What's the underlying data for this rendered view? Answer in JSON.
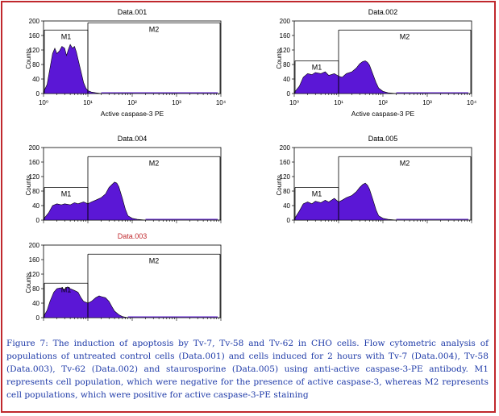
{
  "caption": {
    "title": "Figure 7:",
    "text": "The induction of apoptosis by Tv-7, Tv-58 and Tv-62 in CHO cells. Flow cytometric analysis of populations of untreated control cells (Data.001) and cells induced for 2 hours with Tv-7 (Data.004), Tv-58 (Data.003), Tv-62 (Data.002) and staurosporine (Data.005) using anti-active caspase-3-PE antibody. M1 represents cell population, which were negative for the presence of active caspase-3, whereas M2 represents cell populations, which were positive for active caspase-3-PE staining"
  },
  "colors": {
    "frame": "#c0282d",
    "fill": "#5b17d6",
    "caption": "#1e3aa8",
    "red_title": "#c0282d"
  },
  "chart_data": [
    {
      "type": "area",
      "title": "Data.001",
      "title_color": "#000000",
      "xlabel": "Active caspase-3 PE",
      "ylabel": "Counts",
      "xscale": "log",
      "xlim": [
        1,
        10000
      ],
      "ylim": [
        0,
        200
      ],
      "yticks": [
        0,
        40,
        80,
        120,
        160,
        200
      ],
      "ytick_labels": [
        "0",
        "40",
        "80",
        "120",
        "160",
        "200"
      ],
      "xticks": [
        1,
        10,
        100,
        1000,
        10000
      ],
      "xtick_labels": [
        "10⁰",
        "10¹",
        "10²",
        "10³",
        "10⁴"
      ],
      "gates": [
        {
          "name": "M1",
          "x": [
            1,
            10
          ],
          "level": 175
        },
        {
          "name": "M2",
          "x": [
            10,
            10000
          ],
          "level": 195
        }
      ],
      "x": [
        1,
        1.2,
        1.4,
        1.6,
        1.8,
        2,
        2.3,
        2.6,
        3,
        3.3,
        3.6,
        4,
        4.5,
        5,
        5.5,
        6,
        7,
        8,
        9,
        10,
        12,
        15,
        20
      ],
      "y": [
        4,
        25,
        70,
        110,
        125,
        110,
        118,
        130,
        125,
        105,
        120,
        135,
        125,
        130,
        115,
        95,
        60,
        30,
        15,
        8,
        4,
        2,
        0
      ]
    },
    {
      "type": "area",
      "title": "Data.002",
      "title_color": "#000000",
      "xlabel": "Active caspase-3 PE",
      "ylabel": "Counts",
      "xscale": "log",
      "xlim": [
        1,
        10000
      ],
      "ylim": [
        0,
        200
      ],
      "yticks": [
        0,
        40,
        80,
        120,
        160,
        200
      ],
      "ytick_labels": [
        "0",
        "40",
        "80",
        "120",
        "160",
        "200"
      ],
      "xticks": [
        1,
        10,
        100,
        1000,
        10000
      ],
      "xtick_labels": [
        "10⁰",
        "10¹",
        "10²",
        "10³",
        "10⁴"
      ],
      "gates": [
        {
          "name": "M1",
          "x": [
            1,
            10
          ],
          "level": 90
        },
        {
          "name": "M2",
          "x": [
            10,
            10000
          ],
          "level": 175
        }
      ],
      "x": [
        1,
        1.3,
        1.6,
        2,
        2.5,
        3,
        4,
        5,
        6,
        8,
        10,
        12,
        15,
        20,
        25,
        30,
        35,
        40,
        45,
        50,
        60,
        70,
        80,
        100,
        130,
        200
      ],
      "y": [
        3,
        20,
        45,
        55,
        52,
        58,
        55,
        60,
        50,
        55,
        48,
        45,
        55,
        60,
        70,
        82,
        88,
        90,
        86,
        78,
        52,
        30,
        15,
        6,
        2,
        0
      ]
    },
    {
      "type": "area",
      "title": "Data.004",
      "title_color": "#000000",
      "xlabel": "",
      "ylabel": "Counts",
      "xscale": "log",
      "xlim": [
        1,
        10000
      ],
      "ylim": [
        0,
        200
      ],
      "yticks": [
        0,
        40,
        80,
        120,
        160,
        200
      ],
      "ytick_labels": [
        "0",
        "40",
        "80",
        "120",
        "160",
        "200"
      ],
      "xticks": [],
      "xtick_labels": [],
      "gates": [
        {
          "name": "M1",
          "x": [
            1,
            10
          ],
          "level": 90
        },
        {
          "name": "M2",
          "x": [
            10,
            10000
          ],
          "level": 175
        }
      ],
      "x": [
        1,
        1.3,
        1.6,
        2,
        2.5,
        3,
        4,
        5,
        6,
        8,
        10,
        12,
        15,
        20,
        25,
        30,
        35,
        40,
        45,
        50,
        60,
        70,
        80,
        100,
        130,
        200
      ],
      "y": [
        3,
        20,
        40,
        45,
        42,
        45,
        42,
        48,
        45,
        50,
        45,
        50,
        55,
        62,
        72,
        90,
        98,
        105,
        102,
        92,
        60,
        30,
        12,
        5,
        2,
        0
      ]
    },
    {
      "type": "area",
      "title": "Data.005",
      "title_color": "#000000",
      "xlabel": "",
      "ylabel": "Counts",
      "xscale": "log",
      "xlim": [
        1,
        10000
      ],
      "ylim": [
        0,
        200
      ],
      "yticks": [
        0,
        40,
        80,
        120,
        160,
        200
      ],
      "ytick_labels": [
        "0",
        "40",
        "80",
        "120",
        "160",
        "200"
      ],
      "xticks": [],
      "xtick_labels": [],
      "gates": [
        {
          "name": "M1",
          "x": [
            1,
            10
          ],
          "level": 90
        },
        {
          "name": "M2",
          "x": [
            10,
            10000
          ],
          "level": 175
        }
      ],
      "x": [
        1,
        1.3,
        1.6,
        2,
        2.5,
        3,
        4,
        5,
        6,
        8,
        10,
        12,
        15,
        20,
        25,
        30,
        35,
        40,
        45,
        50,
        60,
        70,
        80,
        100,
        130,
        200
      ],
      "y": [
        3,
        25,
        45,
        50,
        45,
        52,
        48,
        55,
        50,
        60,
        50,
        55,
        62,
        68,
        78,
        90,
        98,
        102,
        96,
        85,
        55,
        28,
        12,
        5,
        2,
        0
      ]
    },
    {
      "type": "area",
      "title": "Data.003",
      "title_color": "#c0282d",
      "xlabel": "",
      "ylabel": "Counts",
      "xscale": "log",
      "xlim": [
        1,
        10000
      ],
      "ylim": [
        0,
        200
      ],
      "yticks": [
        0,
        40,
        80,
        120,
        160,
        200
      ],
      "ytick_labels": [
        "0",
        "40",
        "80",
        "120",
        "160",
        "200"
      ],
      "xticks": [],
      "xtick_labels": [],
      "gates": [
        {
          "name": "M1",
          "x": [
            1,
            10
          ],
          "level": 95
        },
        {
          "name": "M2",
          "x": [
            10,
            10000
          ],
          "level": 175
        }
      ],
      "x": [
        1,
        1.2,
        1.4,
        1.7,
        2,
        2.4,
        3,
        3.5,
        4,
        5,
        6,
        7,
        8,
        10,
        12,
        15,
        18,
        20,
        25,
        30,
        35,
        40,
        50,
        60,
        80
      ],
      "y": [
        3,
        20,
        45,
        70,
        80,
        82,
        78,
        85,
        80,
        75,
        70,
        55,
        45,
        40,
        45,
        55,
        60,
        58,
        55,
        45,
        30,
        18,
        8,
        3,
        0
      ]
    }
  ]
}
